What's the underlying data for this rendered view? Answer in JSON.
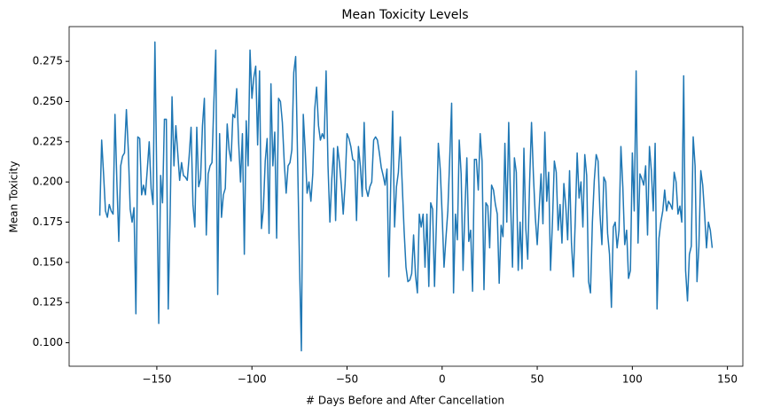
{
  "chart_data": {
    "type": "line",
    "title": "Mean Toxicity Levels",
    "xlabel": "# Days Before and After Cancellation",
    "ylabel": "Mean Toxicity",
    "xlim": [
      -196.1,
      158.1
    ],
    "ylim": [
      0.0854,
      0.2966
    ],
    "xticks": [
      {
        "value": -150,
        "label": "−150"
      },
      {
        "value": -100,
        "label": "−100"
      },
      {
        "value": -50,
        "label": "−50"
      },
      0,
      50,
      100,
      150
    ],
    "yticks": [
      {
        "value": 0.1,
        "label": "0.100"
      },
      {
        "value": 0.125,
        "label": "0.125"
      },
      {
        "value": 0.15,
        "label": "0.150"
      },
      {
        "value": 0.175,
        "label": "0.175"
      },
      {
        "value": 0.2,
        "label": "0.200"
      },
      {
        "value": 0.225,
        "label": "0.225"
      },
      {
        "value": 0.25,
        "label": "0.250"
      },
      {
        "value": 0.275,
        "label": "0.275"
      }
    ],
    "x": [
      -180,
      -179,
      -178,
      -177,
      -176,
      -175,
      -174,
      -173,
      -172,
      -171,
      -170,
      -169,
      -168,
      -167,
      -166,
      -165,
      -164,
      -163,
      -162,
      -161,
      -160,
      -159,
      -158,
      -157,
      -156,
      -155,
      -154,
      -153,
      -152,
      -151,
      -150,
      -149,
      -148,
      -147,
      -146,
      -145,
      -144,
      -143,
      -142,
      -141,
      -140,
      -139,
      -138,
      -137,
      -136,
      -135,
      -134,
      -133,
      -132,
      -131,
      -130,
      -129,
      -128,
      -127,
      -126,
      -125,
      -124,
      -123,
      -122,
      -121,
      -120,
      -119,
      -118,
      -117,
      -116,
      -115,
      -114,
      -113,
      -112,
      -111,
      -110,
      -109,
      -108,
      -107,
      -106,
      -105,
      -104,
      -103,
      -102,
      -101,
      -100,
      -99,
      -98,
      -97,
      -96,
      -95,
      -94,
      -93,
      -92,
      -91,
      -90,
      -89,
      -88,
      -87,
      -86,
      -85,
      -84,
      -83,
      -82,
      -81,
      -80,
      -79,
      -78,
      -77,
      -76,
      -75,
      -74,
      -73,
      -72,
      -71,
      -70,
      -69,
      -68,
      -67,
      -66,
      -65,
      -64,
      -63,
      -62,
      -61,
      -60,
      -59,
      -58,
      -57,
      -56,
      -55,
      -54,
      -53,
      -52,
      -51,
      -50,
      -49,
      -48,
      -47,
      -46,
      -45,
      -44,
      -43,
      -42,
      -41,
      -40,
      -39,
      -38,
      -37,
      -36,
      -35,
      -34,
      -33,
      -32,
      -31,
      -30,
      -29,
      -28,
      -27,
      -26,
      -25,
      -24,
      -23,
      -22,
      -21,
      -20,
      -19,
      -18,
      -17,
      -16,
      -15,
      -14,
      -13,
      -12,
      -11,
      -10,
      -9,
      -8,
      -7,
      -6,
      -5,
      -4,
      -3,
      -2,
      -1,
      0,
      1,
      2,
      3,
      4,
      5,
      6,
      7,
      8,
      9,
      10,
      11,
      12,
      13,
      14,
      15,
      16,
      17,
      18,
      19,
      20,
      21,
      22,
      23,
      24,
      25,
      26,
      27,
      28,
      29,
      30,
      31,
      32,
      33,
      34,
      35,
      36,
      37,
      38,
      39,
      40,
      41,
      42,
      43,
      44,
      45,
      46,
      47,
      48,
      49,
      50,
      51,
      52,
      53,
      54,
      55,
      56,
      57,
      58,
      59,
      60,
      61,
      62,
      63,
      64,
      65,
      66,
      67,
      68,
      69,
      70,
      71,
      72,
      73,
      74,
      75,
      76,
      77,
      78,
      79,
      80,
      81,
      82,
      83,
      84,
      85,
      86,
      87,
      88,
      89,
      90,
      91,
      92,
      93,
      94,
      95,
      96,
      97,
      98,
      99,
      100,
      101,
      102,
      103,
      104,
      105,
      106,
      107,
      108,
      109,
      110,
      111,
      112,
      113,
      114,
      115,
      116,
      117,
      118,
      119,
      120,
      121,
      122,
      123,
      124,
      125,
      126,
      127,
      128,
      129,
      130,
      131,
      132,
      133,
      134,
      135,
      136,
      137,
      138,
      139,
      140,
      141,
      142
    ],
    "series": [
      {
        "color": "#1f77b4",
        "values": [
          0.179,
          0.226,
          0.205,
          0.182,
          0.178,
          0.186,
          0.182,
          0.18,
          0.242,
          0.2,
          0.163,
          0.21,
          0.216,
          0.218,
          0.245,
          0.22,
          0.183,
          0.175,
          0.184,
          0.118,
          0.228,
          0.227,
          0.192,
          0.198,
          0.192,
          0.208,
          0.225,
          0.196,
          0.186,
          0.287,
          0.2,
          0.112,
          0.204,
          0.187,
          0.239,
          0.239,
          0.121,
          0.18,
          0.253,
          0.21,
          0.235,
          0.218,
          0.201,
          0.212,
          0.204,
          0.203,
          0.201,
          0.216,
          0.234,
          0.186,
          0.172,
          0.234,
          0.197,
          0.202,
          0.235,
          0.252,
          0.167,
          0.205,
          0.21,
          0.212,
          0.25,
          0.282,
          0.13,
          0.23,
          0.178,
          0.192,
          0.196,
          0.236,
          0.22,
          0.213,
          0.242,
          0.24,
          0.258,
          0.225,
          0.2,
          0.23,
          0.155,
          0.238,
          0.21,
          0.282,
          0.252,
          0.265,
          0.272,
          0.223,
          0.269,
          0.171,
          0.183,
          0.213,
          0.227,
          0.168,
          0.261,
          0.21,
          0.231,
          0.165,
          0.252,
          0.25,
          0.237,
          0.212,
          0.193,
          0.21,
          0.212,
          0.22,
          0.268,
          0.278,
          0.215,
          0.15,
          0.095,
          0.242,
          0.22,
          0.193,
          0.2,
          0.188,
          0.205,
          0.245,
          0.259,
          0.235,
          0.226,
          0.23,
          0.227,
          0.269,
          0.21,
          0.175,
          0.202,
          0.221,
          0.176,
          0.222,
          0.212,
          0.198,
          0.18,
          0.199,
          0.23,
          0.227,
          0.222,
          0.214,
          0.213,
          0.176,
          0.222,
          0.21,
          0.191,
          0.237,
          0.196,
          0.191,
          0.197,
          0.2,
          0.226,
          0.228,
          0.226,
          0.218,
          0.209,
          0.204,
          0.198,
          0.208,
          0.141,
          0.2,
          0.244,
          0.172,
          0.197,
          0.206,
          0.228,
          0.199,
          0.17,
          0.147,
          0.138,
          0.139,
          0.143,
          0.167,
          0.142,
          0.131,
          0.18,
          0.172,
          0.18,
          0.147,
          0.18,
          0.135,
          0.187,
          0.183,
          0.135,
          0.175,
          0.224,
          0.208,
          0.18,
          0.147,
          0.165,
          0.182,
          0.215,
          0.249,
          0.131,
          0.18,
          0.164,
          0.226,
          0.205,
          0.145,
          0.183,
          0.215,
          0.163,
          0.17,
          0.132,
          0.214,
          0.214,
          0.195,
          0.23,
          0.213,
          0.133,
          0.187,
          0.185,
          0.159,
          0.198,
          0.195,
          0.186,
          0.18,
          0.137,
          0.173,
          0.166,
          0.224,
          0.175,
          0.237,
          0.187,
          0.147,
          0.215,
          0.206,
          0.145,
          0.175,
          0.146,
          0.221,
          0.171,
          0.152,
          0.2,
          0.237,
          0.204,
          0.178,
          0.161,
          0.183,
          0.205,
          0.174,
          0.231,
          0.188,
          0.206,
          0.145,
          0.175,
          0.213,
          0.206,
          0.17,
          0.186,
          0.162,
          0.199,
          0.185,
          0.164,
          0.207,
          0.162,
          0.141,
          0.176,
          0.218,
          0.19,
          0.2,
          0.172,
          0.217,
          0.204,
          0.138,
          0.131,
          0.175,
          0.201,
          0.217,
          0.213,
          0.18,
          0.161,
          0.203,
          0.2,
          0.168,
          0.155,
          0.122,
          0.172,
          0.175,
          0.159,
          0.17,
          0.222,
          0.197,
          0.161,
          0.17,
          0.14,
          0.145,
          0.218,
          0.182,
          0.269,
          0.162,
          0.205,
          0.202,
          0.198,
          0.21,
          0.167,
          0.222,
          0.207,
          0.182,
          0.224,
          0.121,
          0.165,
          0.175,
          0.182,
          0.195,
          0.182,
          0.188,
          0.186,
          0.183,
          0.206,
          0.2,
          0.18,
          0.185,
          0.175,
          0.266,
          0.145,
          0.126,
          0.155,
          0.16,
          0.228,
          0.21,
          0.138,
          0.16,
          0.207,
          0.198,
          0.18,
          0.159,
          0.175,
          0.17,
          0.159
        ]
      }
    ]
  }
}
